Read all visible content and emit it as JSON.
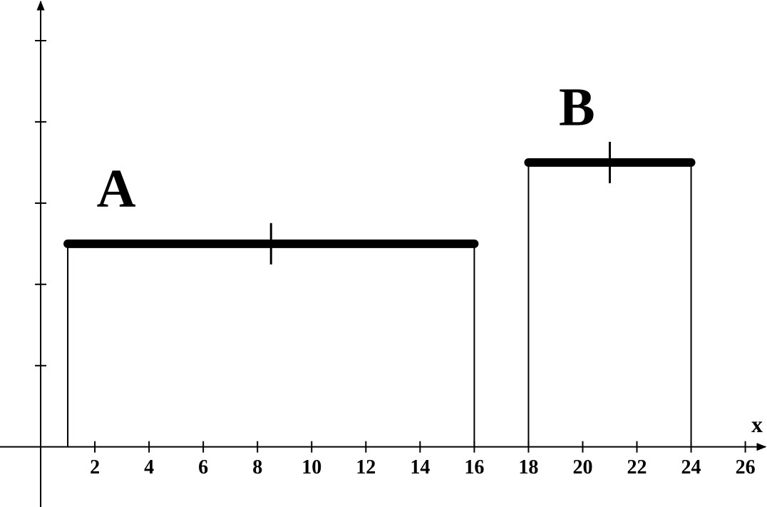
{
  "chart_data": {
    "type": "uniform",
    "xlabel": "x",
    "series": [
      {
        "name": "A",
        "color": "#000000",
        "start": 1,
        "end": 16,
        "value": 2.5,
        "mean": 8.5
      },
      {
        "name": "B",
        "color": "#000000",
        "start": 18,
        "end": 24,
        "value": 3.5,
        "mean": 21
      }
    ],
    "xlim": [
      -1.5,
      26.8
    ],
    "xticks": [
      2,
      4,
      6,
      8,
      10,
      12,
      14,
      16,
      18,
      20,
      22,
      24,
      26
    ],
    "ylim": [
      -0.74,
      5.5
    ],
    "yticks": [
      1,
      2,
      3,
      4,
      5
    ]
  }
}
